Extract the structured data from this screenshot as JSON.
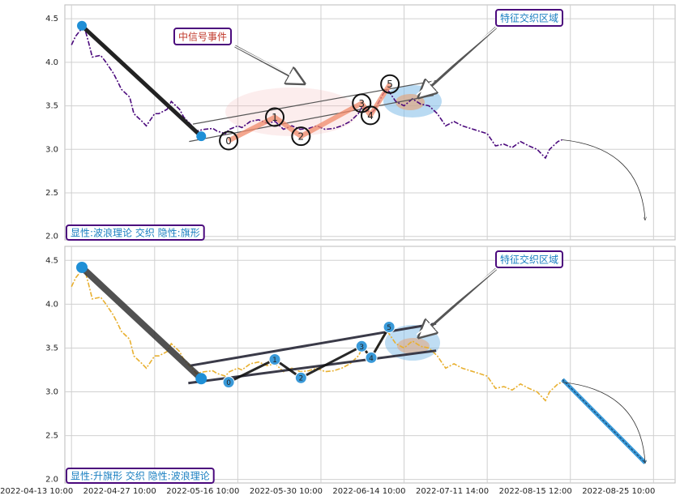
{
  "chart_data": [
    {
      "type": "line",
      "x": [
        0,
        1,
        3,
        4,
        5,
        7,
        8,
        10,
        11,
        12,
        14,
        15,
        17,
        18,
        20,
        21,
        23,
        24,
        26,
        27,
        29,
        30,
        32,
        34,
        35,
        37,
        38,
        40,
        41,
        43,
        45,
        47,
        49,
        51,
        53,
        55,
        57,
        59,
        61,
        63,
        65,
        67,
        69,
        70,
        72,
        73,
        75,
        76,
        78,
        80,
        82,
        84,
        86,
        88,
        90,
        92,
        94,
        96,
        98,
        100,
        102,
        104,
        106,
        108,
        110,
        112,
        114,
        115,
        117,
        118
      ],
      "series": [
        {
          "color": "#4b0a7d",
          "values": [
            4.2,
            4.3,
            4.42,
            4.25,
            4.06,
            4.08,
            4.02,
            3.88,
            3.79,
            3.69,
            3.6,
            3.41,
            3.32,
            3.27,
            3.41,
            3.41,
            3.46,
            3.55,
            3.46,
            3.37,
            3.27,
            3.21,
            3.23,
            3.24,
            3.21,
            3.18,
            3.23,
            3.27,
            3.25,
            3.32,
            3.34,
            3.3,
            3.32,
            3.23,
            3.27,
            3.23,
            3.24,
            3.27,
            3.23,
            3.24,
            3.27,
            3.32,
            3.41,
            3.5,
            3.41,
            3.46,
            3.64,
            3.69,
            3.55,
            3.5,
            3.58,
            3.52,
            3.5,
            3.41,
            3.27,
            3.32,
            3.27,
            3.24,
            3.21,
            3.18,
            3.04,
            3.06,
            3.02,
            3.09,
            3.04,
            3.0,
            2.9,
            3.0,
            3.09,
            3.11
          ]
        }
      ],
      "ylim": [
        1.96,
        4.66
      ],
      "yticks": [
        {
          "value": 2,
          "label": "2.0"
        },
        2.5,
        {
          "value": 3,
          "label": "3.0"
        },
        3.5,
        {
          "value": 4,
          "label": "4.0"
        },
        4.5
      ],
      "xlim": [
        -1.6,
        145.2
      ],
      "xticks": [
        0,
        20,
        40,
        60,
        80,
        100,
        120,
        140
      ],
      "grid": true,
      "trend": {
        "color": "#222222",
        "x": [
          2.5,
          31.2
        ],
        "values": [
          4.42,
          3.15
        ]
      },
      "channel": {
        "color": "#555555",
        "upper": {
          "x": [
            29.2,
            87.7
          ],
          "values": [
            3.29,
            3.79
          ]
        },
        "lower": {
          "x": [
            28.3,
            87.1
          ],
          "values": [
            3.09,
            3.62
          ]
        }
      },
      "waves": {
        "color": "#f08a6a",
        "labels": [
          "0",
          "1",
          "2",
          "3",
          "4",
          "5"
        ],
        "x": [
          37.8,
          48.9,
          55.2,
          69.8,
          71.9,
          76.6
        ],
        "values": [
          3.1,
          3.37,
          3.15,
          3.53,
          3.39,
          3.75
        ]
      },
      "annotations": [
        "中信号事件",
        "特征交织区域"
      ],
      "caption": "显性:波浪理论 交织 隐性:旗形"
    },
    {
      "type": "line",
      "x": [
        0,
        1,
        3,
        4,
        5,
        7,
        8,
        10,
        11,
        12,
        14,
        15,
        17,
        18,
        20,
        21,
        23,
        24,
        26,
        27,
        29,
        30,
        32,
        34,
        35,
        37,
        38,
        40,
        41,
        43,
        45,
        47,
        49,
        51,
        53,
        55,
        57,
        59,
        61,
        63,
        65,
        67,
        69,
        70,
        72,
        73,
        75,
        76,
        78,
        80,
        82,
        84,
        86,
        88,
        90,
        92,
        94,
        96,
        98,
        100,
        102,
        104,
        106,
        108,
        110,
        112,
        114,
        115,
        117,
        118
      ],
      "series": [
        {
          "color": "#e8b030",
          "values": [
            4.2,
            4.3,
            4.42,
            4.25,
            4.06,
            4.08,
            4.02,
            3.88,
            3.79,
            3.69,
            3.6,
            3.41,
            3.32,
            3.27,
            3.41,
            3.41,
            3.46,
            3.55,
            3.46,
            3.37,
            3.27,
            3.21,
            3.23,
            3.24,
            3.21,
            3.18,
            3.23,
            3.27,
            3.25,
            3.32,
            3.34,
            3.3,
            3.32,
            3.23,
            3.27,
            3.23,
            3.24,
            3.27,
            3.23,
            3.24,
            3.27,
            3.32,
            3.41,
            3.5,
            3.41,
            3.46,
            3.64,
            3.69,
            3.55,
            3.5,
            3.58,
            3.52,
            3.5,
            3.41,
            3.27,
            3.32,
            3.27,
            3.24,
            3.21,
            3.18,
            3.04,
            3.06,
            3.02,
            3.09,
            3.04,
            3.0,
            2.9,
            3.0,
            3.09,
            3.11
          ]
        }
      ],
      "ylim": [
        1.96,
        4.66
      ],
      "yticks": [
        {
          "value": 2,
          "label": "2.0"
        },
        2.5,
        {
          "value": 3,
          "label": "3.0"
        },
        3.5,
        {
          "value": 4,
          "label": "4.0"
        },
        4.5
      ],
      "xlim": [
        -1.6,
        145.2
      ],
      "xticks": [
        {
          "value": 0,
          "label": "2022-04-13 10:00"
        },
        {
          "value": 20,
          "label": "2022-04-27 10:00"
        },
        {
          "value": 40,
          "label": "2022-05-16 10:00"
        },
        {
          "value": 60,
          "label": "2022-05-30 10:00"
        },
        {
          "value": 80,
          "label": "2022-06-14 10:00"
        },
        {
          "value": 100,
          "label": "2022-07-11 14:00"
        },
        {
          "value": 120,
          "label": "2022-08-15 12:00"
        },
        {
          "value": 140,
          "label": "2022-08-25 10:00"
        }
      ],
      "grid": true,
      "trend": {
        "color": "#333333",
        "x": [
          2.5,
          31.2
        ],
        "values": [
          4.42,
          3.15
        ]
      },
      "channel": {
        "color": "#3a3a48",
        "upper": {
          "x": [
            28.7,
            87.7
          ],
          "values": [
            3.3,
            3.78
          ]
        },
        "lower": {
          "x": [
            28.1,
            87.7
          ],
          "values": [
            3.1,
            3.47
          ]
        }
      },
      "waves": {
        "color": "#111111",
        "point_color": "#3a9ad9",
        "labels": [
          "0",
          "1",
          "2",
          "3",
          "4",
          "5"
        ],
        "x": [
          37.8,
          48.9,
          55.2,
          69.8,
          72.1,
          76.4
        ],
        "values": [
          3.11,
          3.37,
          3.16,
          3.52,
          3.39,
          3.74
        ]
      },
      "forecast": {
        "color": "#3a9ad9",
        "x": [
          118.1,
          138
        ],
        "values": [
          3.14,
          2.19
        ]
      },
      "annotations": [
        "特征交织区域"
      ],
      "caption": "显性:升旗形 交织 隐性:波浪理论"
    }
  ]
}
